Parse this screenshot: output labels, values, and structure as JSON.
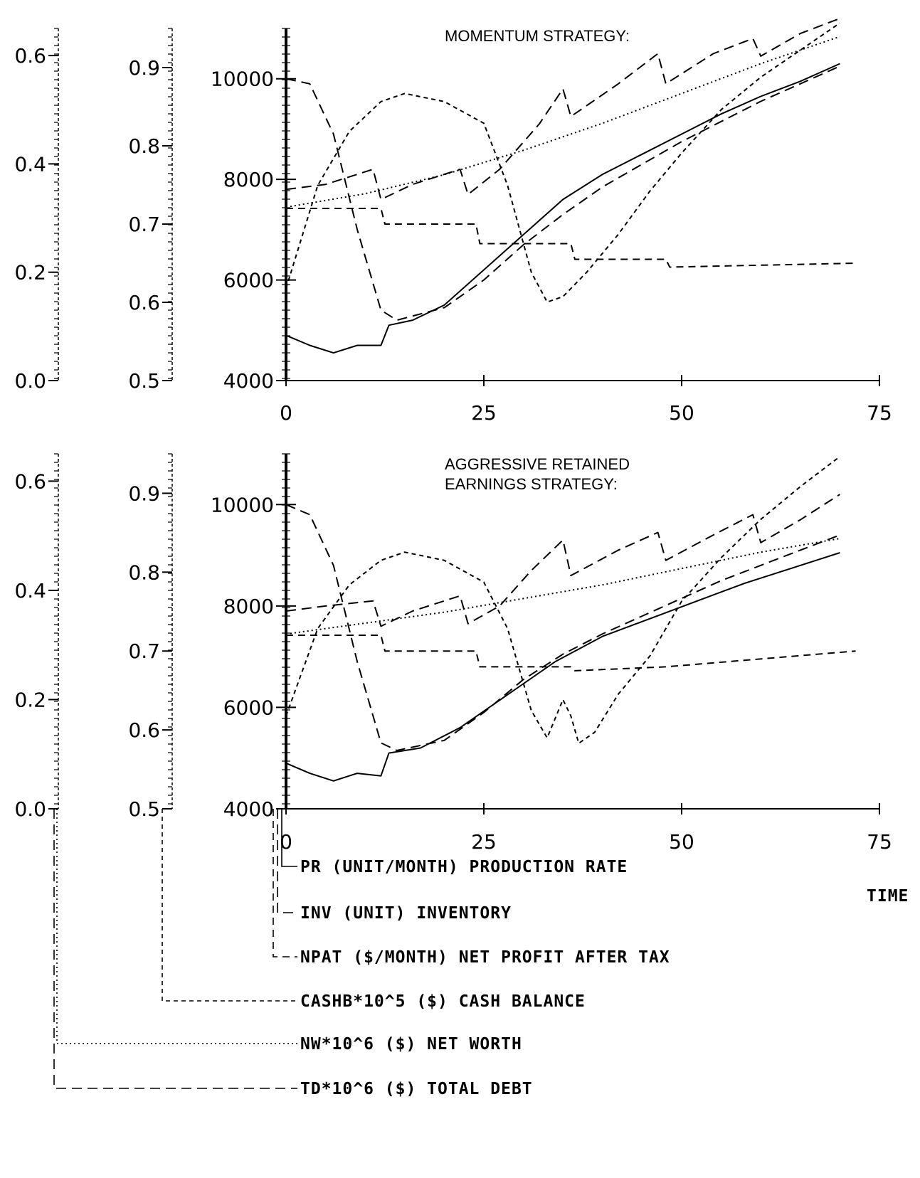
{
  "chart_data": [
    {
      "type": "line",
      "title": "MOMENTUM STRATEGY:",
      "xlim": [
        0,
        75
      ],
      "x_ticks": [
        "0",
        "25",
        "50",
        "75"
      ],
      "axes": {
        "PR_INV": {
          "ylim": [
            4000,
            11000
          ],
          "ticks": [
            "4000",
            "6000",
            "8000",
            "10000"
          ]
        },
        "NPAT": {
          "ylim": [
            0.5,
            0.95
          ],
          "ticks": [
            "0.5",
            "0.6",
            "0.7",
            "0.8",
            "0.9"
          ]
        },
        "CASHB_NW_TD": {
          "ylim": [
            0.0,
            0.65
          ],
          "ticks": [
            "0.0",
            "0.2",
            "0.4",
            "0.6"
          ]
        }
      },
      "series": [
        {
          "name": "PR (UNIT/MONTH) PRODUCTION RATE",
          "axis": "PR_INV",
          "dash": "solid",
          "points": [
            [
              0,
              4900
            ],
            [
              3,
              4700
            ],
            [
              6,
              4550
            ],
            [
              9,
              4700
            ],
            [
              12,
              4700
            ],
            [
              13,
              5100
            ],
            [
              16,
              5200
            ],
            [
              20,
              5500
            ],
            [
              25,
              6200
            ],
            [
              30,
              6900
            ],
            [
              35,
              7600
            ],
            [
              40,
              8100
            ],
            [
              45,
              8500
            ],
            [
              50,
              8900
            ],
            [
              55,
              9300
            ],
            [
              60,
              9650
            ],
            [
              65,
              9950
            ],
            [
              70,
              10300
            ]
          ]
        },
        {
          "name": "INV (UNIT) INVENTORY",
          "axis": "PR_INV",
          "dash": "long",
          "points": [
            [
              0,
              7800
            ],
            [
              5,
              7900
            ],
            [
              11,
              8200
            ],
            [
              12,
              7600
            ],
            [
              16,
              7900
            ],
            [
              22,
              8200
            ],
            [
              23,
              7700
            ],
            [
              27,
              8200
            ],
            [
              32,
              9100
            ],
            [
              35,
              9800
            ],
            [
              36,
              9250
            ],
            [
              42,
              9900
            ],
            [
              47,
              10500
            ],
            [
              48,
              9900
            ],
            [
              54,
              10500
            ],
            [
              59,
              10800
            ],
            [
              60,
              10450
            ],
            [
              65,
              10900
            ],
            [
              70,
              11200
            ]
          ]
        },
        {
          "name": "NPAT ($/MONTH) NET PROFIT AFTER TAX",
          "axis": "NPAT",
          "dash": "medium",
          "points": [
            [
              0,
              0.72
            ],
            [
              12,
              0.72
            ],
            [
              12.5,
              0.7
            ],
            [
              24,
              0.7
            ],
            [
              24.5,
              0.675
            ],
            [
              36,
              0.675
            ],
            [
              36.5,
              0.655
            ],
            [
              48,
              0.655
            ],
            [
              48.5,
              0.645
            ],
            [
              72,
              0.65
            ]
          ]
        },
        {
          "name": "CASHB*10^5 ($) CASH BALANCE",
          "axis": "CASHB_NW_TD",
          "dash": "short",
          "points": [
            [
              0,
              0.17
            ],
            [
              4,
              0.36
            ],
            [
              8,
              0.46
            ],
            [
              12,
              0.515
            ],
            [
              15,
              0.53
            ],
            [
              20,
              0.515
            ],
            [
              25,
              0.475
            ],
            [
              28,
              0.36
            ],
            [
              31,
              0.2
            ],
            [
              33,
              0.145
            ],
            [
              35,
              0.155
            ],
            [
              38,
              0.2
            ],
            [
              42,
              0.27
            ],
            [
              46,
              0.35
            ],
            [
              50,
              0.42
            ],
            [
              55,
              0.5
            ],
            [
              60,
              0.56
            ],
            [
              65,
              0.61
            ],
            [
              70,
              0.66
            ]
          ]
        },
        {
          "name": "NW*10^6 ($) NET WORTH",
          "axis": "CASHB_NW_TD",
          "dash": "dotted",
          "points": [
            [
              0,
              0.32
            ],
            [
              10,
              0.345
            ],
            [
              20,
              0.38
            ],
            [
              30,
              0.425
            ],
            [
              40,
              0.475
            ],
            [
              50,
              0.53
            ],
            [
              60,
              0.585
            ],
            [
              70,
              0.635
            ]
          ]
        },
        {
          "name": "TD*10^6 ($) TOTAL DEBT",
          "axis": "PR_INV",
          "dash": "long",
          "points": [
            [
              0,
              10000
            ],
            [
              3,
              9900
            ],
            [
              6,
              8900
            ],
            [
              9,
              7000
            ],
            [
              12,
              5400
            ],
            [
              14,
              5200
            ],
            [
              20,
              5450
            ],
            [
              25,
              6000
            ],
            [
              30,
              6700
            ],
            [
              35,
              7300
            ],
            [
              40,
              7850
            ],
            [
              45,
              8300
            ],
            [
              50,
              8750
            ],
            [
              55,
              9150
            ],
            [
              60,
              9550
            ],
            [
              65,
              9900
            ],
            [
              70,
              10250
            ]
          ]
        }
      ]
    },
    {
      "type": "line",
      "title": "AGGRESSIVE RETAINED EARNINGS STRATEGY:",
      "xlim": [
        0,
        75
      ],
      "x_ticks": [
        "0",
        "25",
        "50",
        "75"
      ],
      "axes": {
        "PR_INV": {
          "ylim": [
            4000,
            11000
          ],
          "ticks": [
            "4000",
            "6000",
            "8000",
            "10000"
          ]
        },
        "NPAT": {
          "ylim": [
            0.5,
            0.95
          ],
          "ticks": [
            "0.5",
            "0.6",
            "0.7",
            "0.8",
            "0.9"
          ]
        },
        "CASHB_NW_TD": {
          "ylim": [
            0.0,
            0.65
          ],
          "ticks": [
            "0.0",
            "0.2",
            "0.4",
            "0.6"
          ]
        }
      },
      "series": [
        {
          "name": "PR (UNIT/MONTH) PRODUCTION RATE",
          "axis": "PR_INV",
          "dash": "solid",
          "points": [
            [
              0,
              4900
            ],
            [
              3,
              4700
            ],
            [
              6,
              4550
            ],
            [
              9,
              4700
            ],
            [
              12,
              4650
            ],
            [
              13,
              5100
            ],
            [
              17,
              5200
            ],
            [
              22,
              5600
            ],
            [
              28,
              6250
            ],
            [
              34,
              6900
            ],
            [
              40,
              7400
            ],
            [
              46,
              7750
            ],
            [
              52,
              8100
            ],
            [
              58,
              8450
            ],
            [
              64,
              8750
            ],
            [
              70,
              9050
            ]
          ]
        },
        {
          "name": "INV (UNIT) INVENTORY",
          "axis": "PR_INV",
          "dash": "long",
          "points": [
            [
              0,
              7900
            ],
            [
              5,
              8000
            ],
            [
              11,
              8100
            ],
            [
              12,
              7600
            ],
            [
              16,
              7900
            ],
            [
              22,
              8200
            ],
            [
              23,
              7650
            ],
            [
              27,
              8000
            ],
            [
              31,
              8700
            ],
            [
              35,
              9300
            ],
            [
              36,
              8600
            ],
            [
              42,
              9100
            ],
            [
              47,
              9450
            ],
            [
              48,
              8900
            ],
            [
              54,
              9400
            ],
            [
              59,
              9800
            ],
            [
              60,
              9250
            ],
            [
              65,
              9700
            ],
            [
              70,
              10200
            ]
          ]
        },
        {
          "name": "NPAT ($/MONTH) NET PROFIT AFTER TAX",
          "axis": "NPAT",
          "dash": "medium",
          "points": [
            [
              0,
              0.72
            ],
            [
              12,
              0.72
            ],
            [
              12.5,
              0.7
            ],
            [
              24,
              0.7
            ],
            [
              24.5,
              0.68
            ],
            [
              36,
              0.68
            ],
            [
              36.5,
              0.675
            ],
            [
              48,
              0.68
            ],
            [
              72,
              0.7
            ]
          ]
        },
        {
          "name": "CASHB*10^5 ($) CASH BALANCE",
          "axis": "CASHB_NW_TD",
          "dash": "short",
          "points": [
            [
              0,
              0.17
            ],
            [
              4,
              0.33
            ],
            [
              8,
              0.41
            ],
            [
              12,
              0.455
            ],
            [
              15,
              0.47
            ],
            [
              20,
              0.455
            ],
            [
              25,
              0.415
            ],
            [
              28,
              0.33
            ],
            [
              31,
              0.18
            ],
            [
              33,
              0.13
            ],
            [
              35,
              0.2
            ],
            [
              36,
              0.17
            ],
            [
              37,
              0.12
            ],
            [
              39,
              0.14
            ],
            [
              42,
              0.21
            ],
            [
              46,
              0.28
            ],
            [
              50,
              0.38
            ],
            [
              55,
              0.46
            ],
            [
              60,
              0.53
            ],
            [
              65,
              0.59
            ],
            [
              70,
              0.645
            ]
          ]
        },
        {
          "name": "NW*10^6 ($) NET WORTH",
          "axis": "CASHB_NW_TD",
          "dash": "dotted",
          "points": [
            [
              0,
              0.32
            ],
            [
              10,
              0.34
            ],
            [
              20,
              0.36
            ],
            [
              30,
              0.385
            ],
            [
              40,
              0.41
            ],
            [
              50,
              0.44
            ],
            [
              60,
              0.47
            ],
            [
              70,
              0.495
            ]
          ]
        },
        {
          "name": "TD*10^6 ($) TOTAL DEBT",
          "axis": "PR_INV",
          "dash": "long",
          "points": [
            [
              0,
              10000
            ],
            [
              3,
              9800
            ],
            [
              6,
              8800
            ],
            [
              9,
              6900
            ],
            [
              12,
              5300
            ],
            [
              14,
              5150
            ],
            [
              20,
              5350
            ],
            [
              25,
              5900
            ],
            [
              30,
              6550
            ],
            [
              35,
              7050
            ],
            [
              40,
              7450
            ],
            [
              45,
              7800
            ],
            [
              50,
              8150
            ],
            [
              55,
              8500
            ],
            [
              60,
              8800
            ],
            [
              65,
              9100
            ],
            [
              70,
              9400
            ]
          ]
        }
      ]
    }
  ],
  "time_label": "TIME",
  "legend": [
    {
      "label": "PR (UNIT/MONTH) PRODUCTION RATE",
      "dash": "solid"
    },
    {
      "label": "INV (UNIT) INVENTORY",
      "dash": "long"
    },
    {
      "label": "NPAT ($/MONTH) NET PROFIT AFTER TAX",
      "dash": "medium"
    },
    {
      "label": "CASHB*10^5 ($) CASH BALANCE",
      "dash": "short"
    },
    {
      "label": "NW*10^6 ($) NET WORTH",
      "dash": "dotted"
    },
    {
      "label": "TD*10^6 ($) TOTAL DEBT",
      "dash": "long"
    }
  ]
}
